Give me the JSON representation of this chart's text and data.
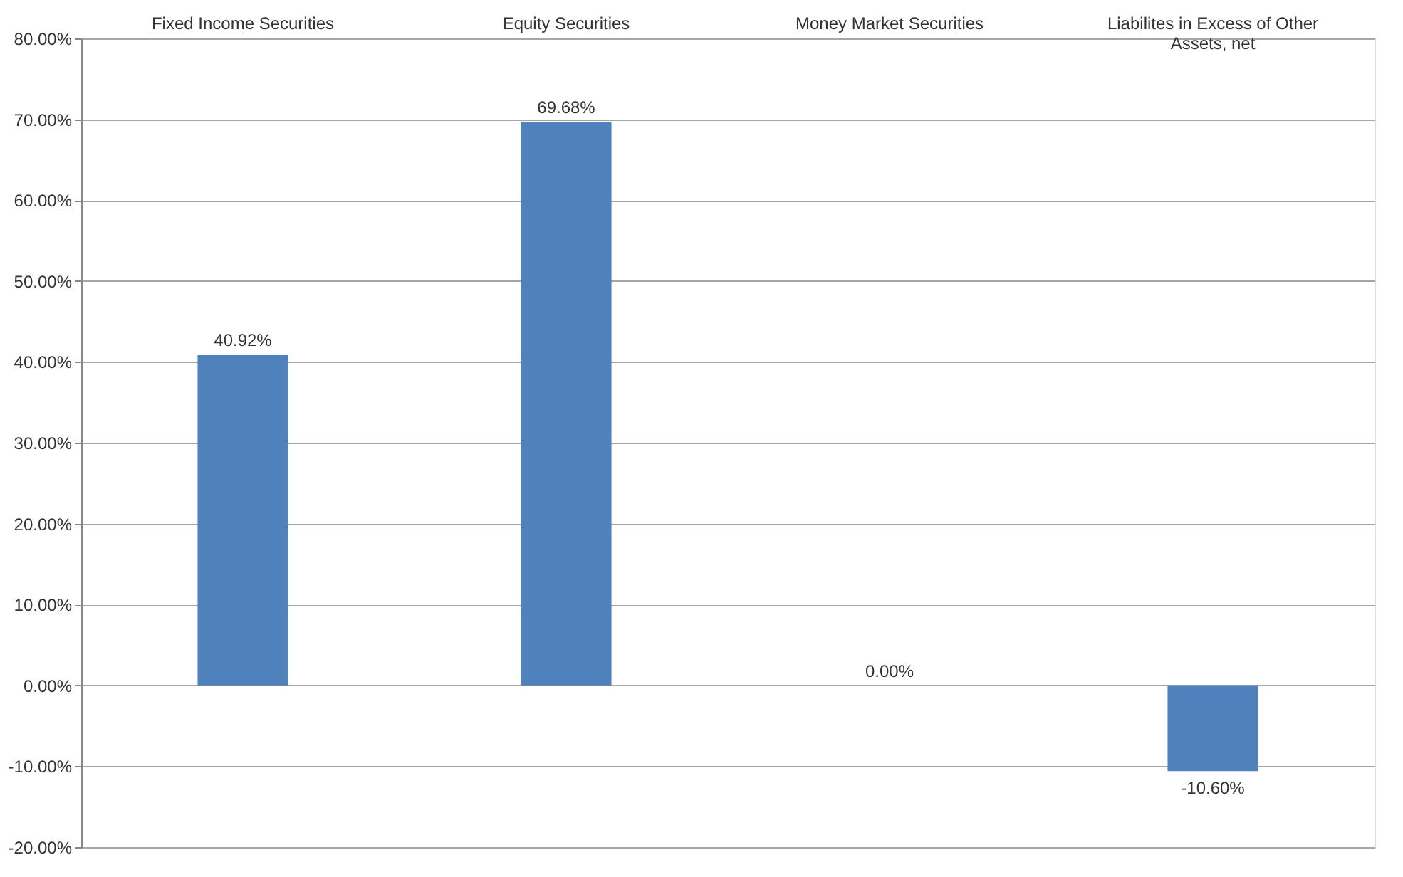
{
  "chart_data": {
    "type": "bar",
    "categories": [
      "Fixed Income Securities",
      "Equity Securities",
      "Money Market Securities",
      "Liabilites in Excess of Other Assets, net"
    ],
    "values": [
      40.92,
      69.68,
      0.0,
      -10.6
    ],
    "color": "#4f81bd",
    "value_labels": [
      "40.92%",
      "69.68%",
      "0.00%",
      "-10.60%"
    ],
    "ylim": [
      -20,
      80
    ],
    "yticks": [
      {
        "value": -20,
        "label": "-20.00%"
      },
      {
        "value": -10,
        "label": "-10.00%"
      },
      {
        "value": 0,
        "label": "0.00%"
      },
      {
        "value": 10,
        "label": "10.00%"
      },
      {
        "value": 20,
        "label": "20.00%"
      },
      {
        "value": 30,
        "label": "30.00%"
      },
      {
        "value": 40,
        "label": "40.00%"
      },
      {
        "value": 50,
        "label": "50.00%"
      },
      {
        "value": 60,
        "label": "60.00%"
      },
      {
        "value": 70,
        "label": "70.00%"
      },
      {
        "value": 80,
        "label": "80.00%"
      }
    ],
    "grid": "y"
  }
}
